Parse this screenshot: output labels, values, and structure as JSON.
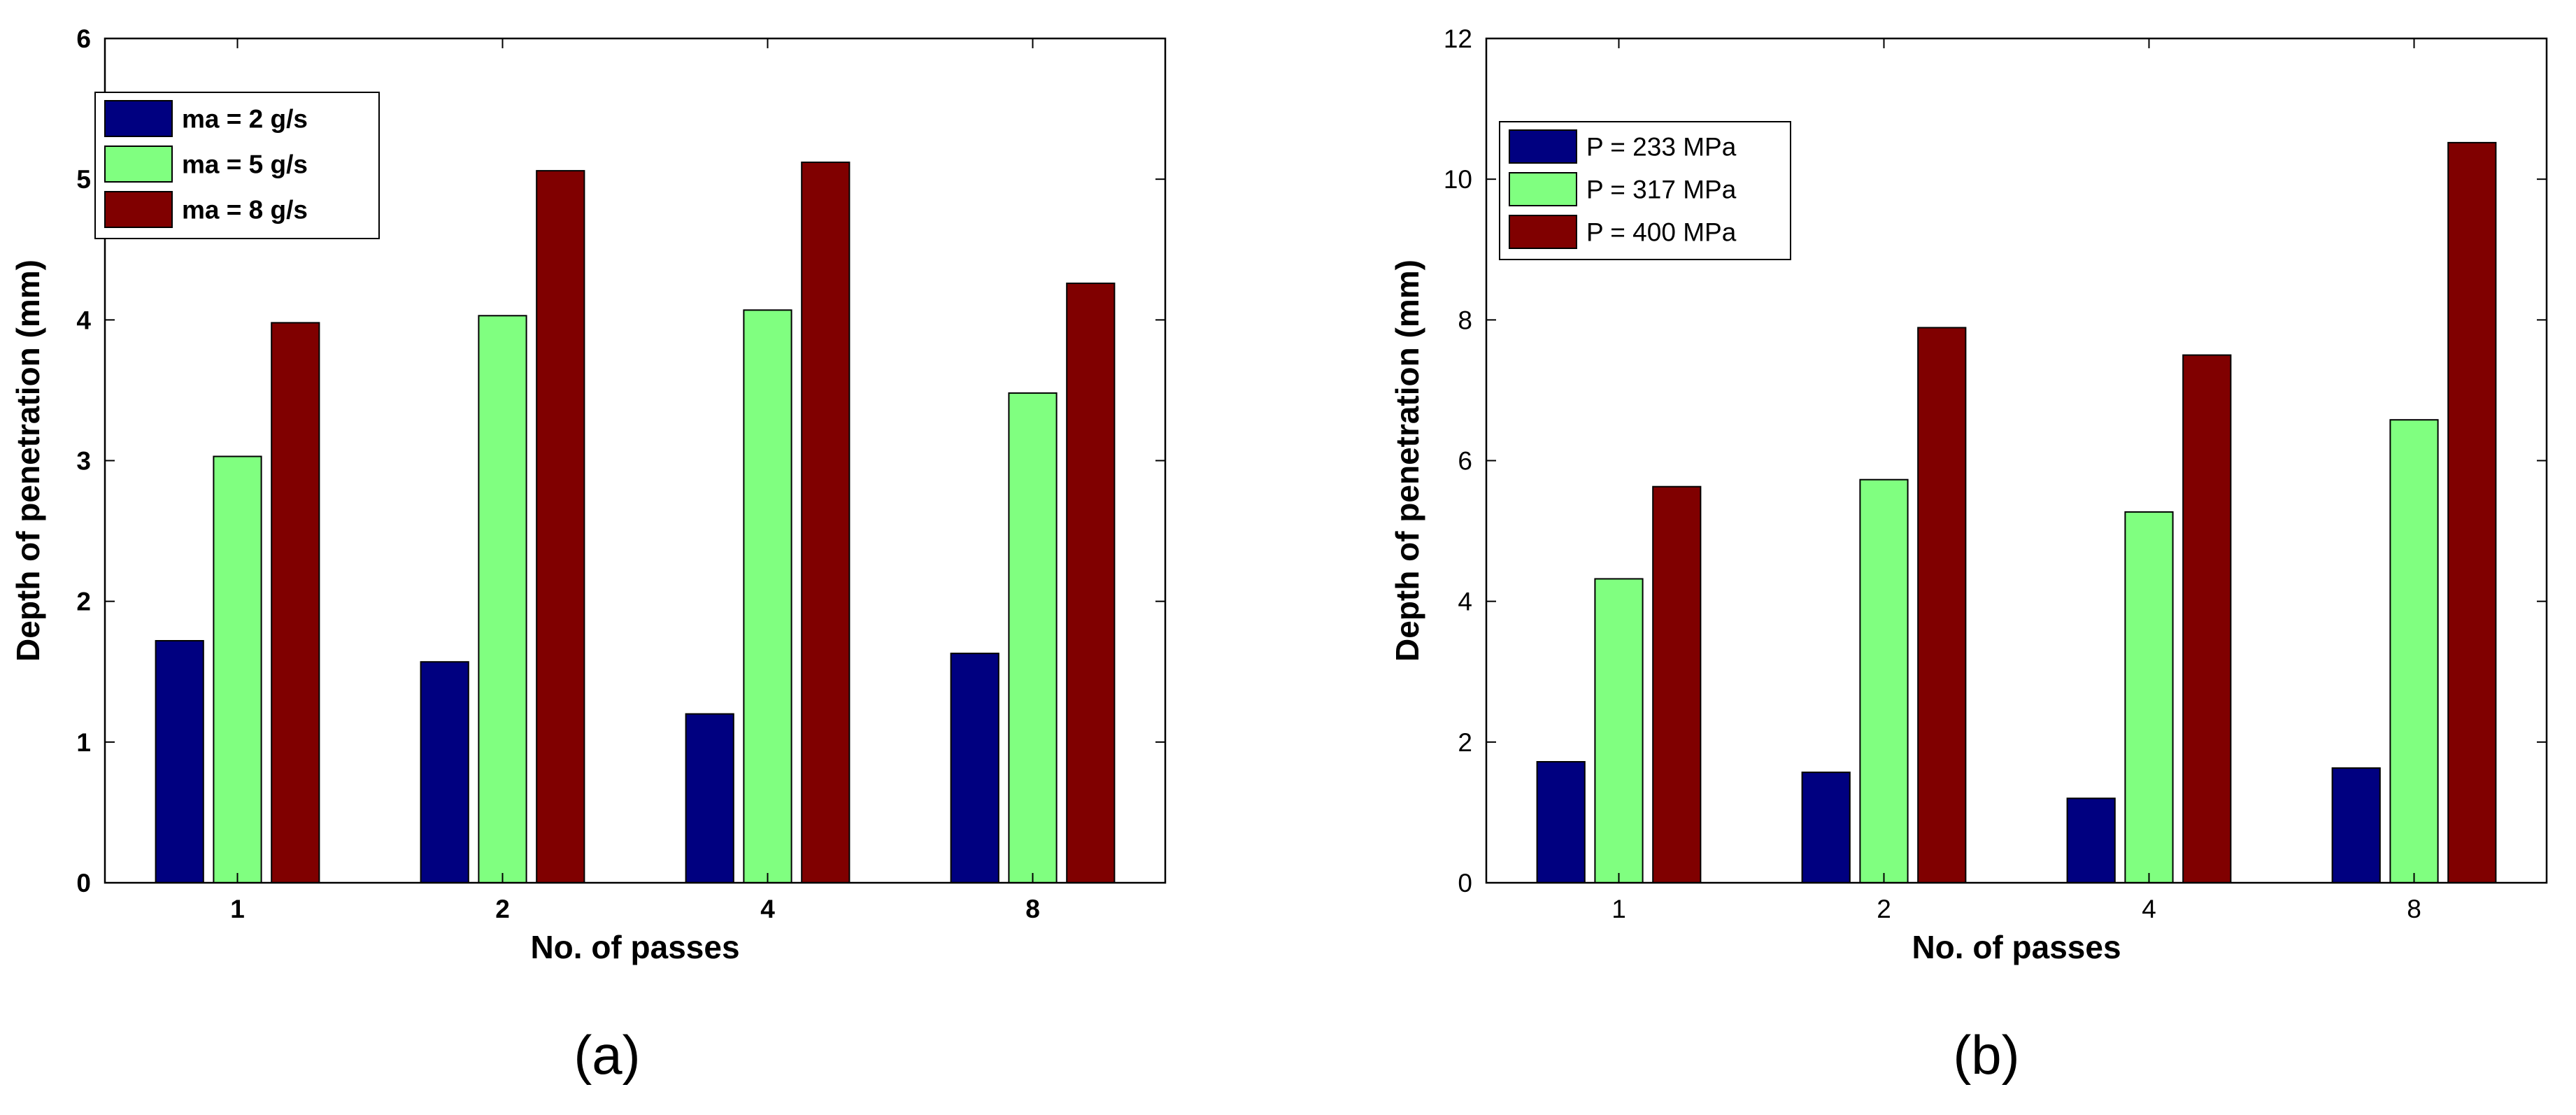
{
  "chart_data": [
    {
      "type": "bar",
      "caption": "(a)",
      "title": "",
      "xlabel": "No. of passes",
      "ylabel": "Depth of penetration (mm)",
      "categories": [
        "1",
        "2",
        "4",
        "8"
      ],
      "ylim": [
        0,
        6
      ],
      "yticks": [
        "0",
        "1",
        "2",
        "3",
        "4",
        "5",
        "6"
      ],
      "legend_position": "top-left",
      "series": [
        {
          "name": "ma = 2 g/s",
          "color": "#000080",
          "values": [
            1.72,
            1.57,
            1.2,
            1.63
          ]
        },
        {
          "name": "ma = 5 g/s",
          "color": "#80ff80",
          "values": [
            3.03,
            4.03,
            4.07,
            3.48
          ]
        },
        {
          "name": "ma = 8 g/s",
          "color": "#800000",
          "values": [
            3.98,
            5.06,
            5.12,
            4.26
          ]
        }
      ]
    },
    {
      "type": "bar",
      "caption": "(b)",
      "title": "",
      "xlabel": "No. of passes",
      "ylabel": "Depth of penetration (mm)",
      "categories": [
        "1",
        "2",
        "4",
        "8"
      ],
      "ylim": [
        0,
        12
      ],
      "yticks": [
        "0",
        "2",
        "4",
        "6",
        "8",
        "10",
        "12"
      ],
      "legend_position": "top-left",
      "series": [
        {
          "name": "P = 233 MPa",
          "color": "#000080",
          "values": [
            1.72,
            1.57,
            1.2,
            1.63
          ]
        },
        {
          "name": "P = 317 MPa",
          "color": "#80ff80",
          "values": [
            4.32,
            5.73,
            5.27,
            6.58
          ]
        },
        {
          "name": "P = 400 MPa",
          "color": "#800000",
          "values": [
            5.63,
            7.89,
            7.5,
            10.52
          ]
        }
      ]
    }
  ]
}
